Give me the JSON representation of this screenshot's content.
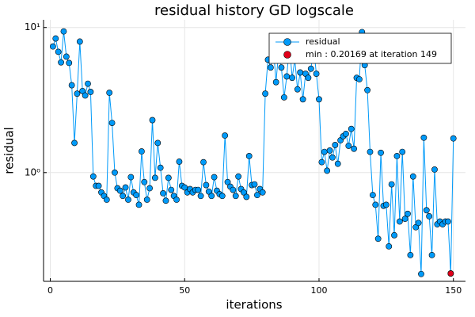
{
  "chart_data": {
    "type": "line",
    "title": "residual history GD logscale",
    "xlabel": "iterations",
    "ylabel": "residual",
    "xlim": [
      -2.5,
      154.5
    ],
    "xticks": [
      0,
      50,
      100,
      150
    ],
    "ylim": [
      0.178,
      11.3
    ],
    "log_y": true,
    "yticks": [
      {
        "value": 10,
        "label": "10¹"
      },
      {
        "value": 1,
        "label": "10⁰"
      }
    ],
    "grid": true,
    "legend": "top-right",
    "series": [
      {
        "name": "residual",
        "color": "#009af9",
        "markers": true,
        "line": true,
        "x": [
          1,
          2,
          3,
          4,
          5,
          6,
          7,
          8,
          9,
          10,
          11,
          12,
          13,
          14,
          15,
          16,
          17,
          18,
          19,
          20,
          21,
          22,
          23,
          24,
          25,
          26,
          27,
          28,
          29,
          30,
          31,
          32,
          33,
          34,
          35,
          36,
          37,
          38,
          39,
          40,
          41,
          42,
          43,
          44,
          45,
          46,
          47,
          48,
          49,
          50,
          51,
          52,
          53,
          54,
          55,
          56,
          57,
          58,
          59,
          60,
          61,
          62,
          63,
          64,
          65,
          66,
          67,
          68,
          69,
          70,
          71,
          72,
          73,
          74,
          75,
          76,
          77,
          78,
          79,
          80,
          81,
          82,
          83,
          84,
          85,
          86,
          87,
          88,
          89,
          90,
          91,
          92,
          93,
          94,
          95,
          96,
          97,
          98,
          99,
          100,
          101,
          102,
          103,
          104,
          105,
          106,
          107,
          108,
          109,
          110,
          111,
          112,
          113,
          114,
          115,
          116,
          117,
          118,
          119,
          120,
          121,
          122,
          123,
          124,
          125,
          126,
          127,
          128,
          129,
          130,
          131,
          132,
          133,
          134,
          135,
          136,
          137,
          138,
          139,
          140,
          141,
          142,
          143,
          144,
          145,
          146,
          147,
          148,
          149,
          150
        ],
        "values": [
          7.4,
          8.4,
          6.8,
          5.75,
          9.4,
          6.3,
          5.7,
          4.0,
          1.6,
          3.5,
          8.0,
          3.65,
          3.4,
          4.1,
          3.6,
          0.94,
          0.81,
          0.81,
          0.73,
          0.69,
          0.65,
          3.55,
          2.2,
          1.0,
          0.78,
          0.75,
          0.69,
          0.79,
          0.65,
          0.93,
          0.73,
          0.7,
          0.6,
          1.4,
          0.86,
          0.65,
          0.78,
          2.3,
          0.92,
          1.6,
          1.08,
          0.72,
          0.64,
          0.92,
          0.76,
          0.69,
          0.65,
          1.19,
          0.81,
          0.79,
          0.73,
          0.77,
          0.73,
          0.76,
          0.76,
          0.69,
          1.18,
          0.82,
          0.74,
          0.69,
          0.93,
          0.75,
          0.71,
          0.69,
          1.8,
          0.86,
          0.8,
          0.76,
          0.69,
          0.94,
          0.77,
          0.73,
          0.68,
          1.3,
          0.82,
          0.83,
          0.7,
          0.77,
          0.73,
          3.5,
          6.0,
          5.3,
          7.3,
          4.2,
          6.9,
          5.3,
          3.3,
          4.6,
          7.6,
          4.5,
          6.0,
          3.75,
          4.9,
          3.2,
          4.8,
          4.5,
          5.2,
          7.3,
          4.8,
          3.2,
          1.18,
          1.39,
          1.03,
          1.42,
          1.27,
          1.55,
          1.15,
          1.67,
          1.78,
          1.85,
          1.53,
          2.0,
          1.46,
          4.5,
          4.4,
          9.3,
          5.5,
          3.7,
          1.39,
          0.7,
          0.6,
          0.35,
          1.37,
          0.59,
          0.6,
          0.31,
          0.83,
          0.37,
          1.3,
          0.46,
          1.39,
          0.48,
          0.52,
          0.27,
          0.94,
          0.42,
          0.45,
          0.2,
          1.74,
          0.55,
          0.5,
          0.27,
          1.05,
          0.44,
          0.46,
          0.44,
          0.46,
          0.46,
          0.20169,
          1.72
        ]
      },
      {
        "name": "min : 0.20169 at iteration 149",
        "color": "#e0001a",
        "markers": true,
        "line": false,
        "x": [
          149
        ],
        "values": [
          0.20169
        ]
      }
    ]
  }
}
